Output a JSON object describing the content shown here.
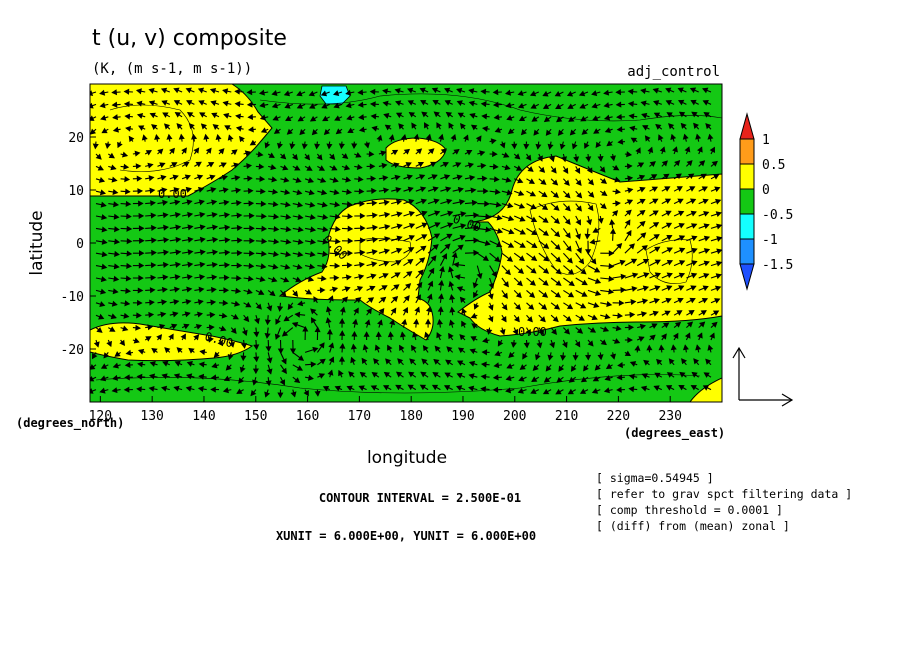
{
  "chart_data": {
    "type": "contour",
    "title": "t (u, v) composite",
    "subtitle": "(K, (m s-1, m s-1))",
    "run_label": "adj_control",
    "xlabel": "longitude",
    "ylabel": "latitude",
    "x_units": "(degrees_east)",
    "y_units": "(degrees_north)",
    "xlim": [
      118,
      240
    ],
    "ylim": [
      -30,
      30
    ],
    "x_ticks": [
      120,
      130,
      140,
      150,
      160,
      170,
      180,
      190,
      200,
      210,
      220,
      230
    ],
    "y_ticks": [
      -20,
      -10,
      0,
      10,
      20
    ],
    "colorbar": {
      "levels": [
        "1",
        "0.5",
        "0",
        "-0.5",
        "-1",
        "-1.5"
      ],
      "colors": [
        "#e8231b",
        "#ff9c1a",
        "#ffff00",
        "#14c814",
        "#14ffff",
        "#1e90ff",
        "#1e50ff"
      ]
    },
    "contour_labels": [
      "0.00",
      "0.00",
      "0.00",
      "0.00",
      "0.00"
    ],
    "info": {
      "sigma": "[ sigma=0.54945 ]",
      "filter": "[ refer to grav spct filtering data ]",
      "threshold": "[ comp threshold = 0.0001 ]",
      "diff": "[ (diff) from (mean) zonal ]",
      "contour_interval": "CONTOUR INTERVAL = 2.500E-01",
      "units": "XUNIT = 6.000E+00, YUNIT = 6.000E+00"
    },
    "grid": false
  }
}
